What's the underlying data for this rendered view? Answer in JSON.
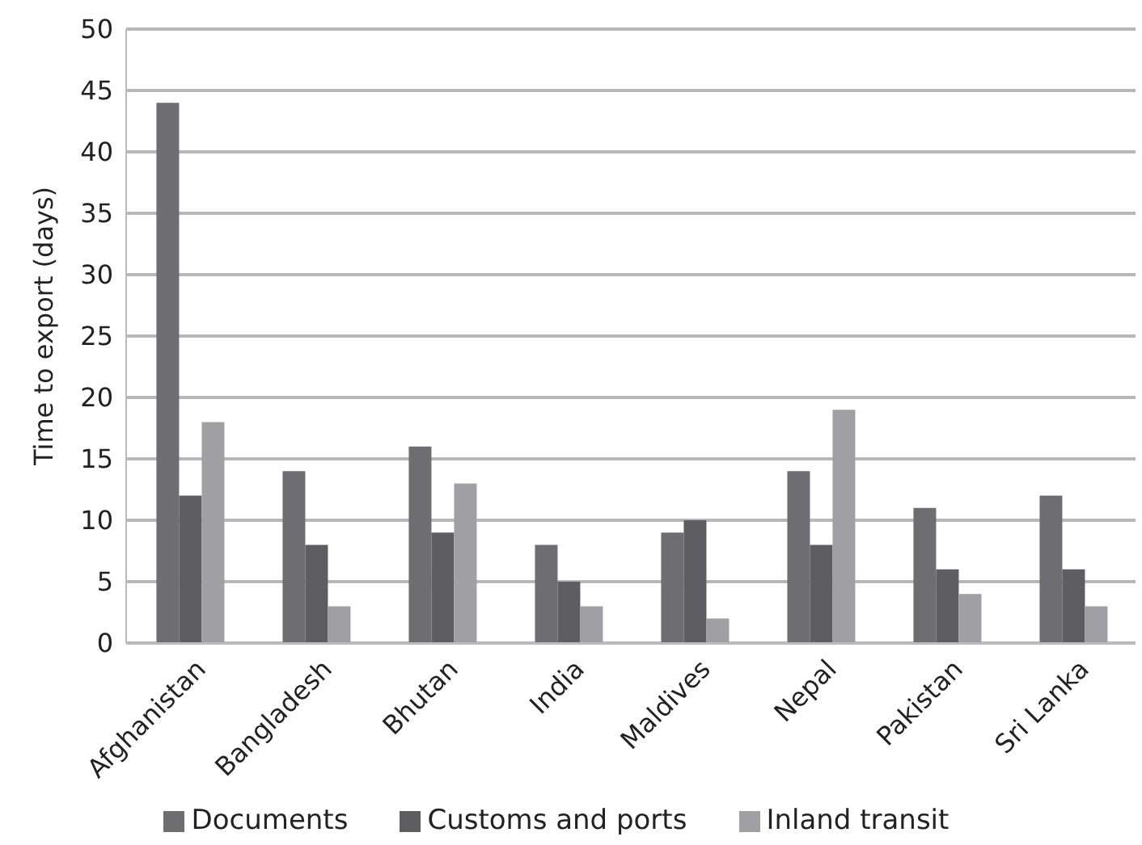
{
  "chart_data": {
    "type": "bar",
    "ylabel": "Time to export (days)",
    "categories": [
      "Afghanistan",
      "Bangladesh",
      "Bhutan",
      "India",
      "Maldives",
      "Nepal",
      "Pakistan",
      "Sri Lanka"
    ],
    "series": [
      {
        "name": "Documents",
        "color": "#6e6e72",
        "values": [
          44,
          14,
          16,
          8,
          9,
          14,
          11,
          12
        ]
      },
      {
        "name": "Customs and ports",
        "color": "#5e5e62",
        "values": [
          12,
          8,
          9,
          5,
          10,
          8,
          6,
          6
        ]
      },
      {
        "name": "Inland transit",
        "color": "#a0a0a4",
        "values": [
          18,
          3,
          13,
          3,
          2,
          19,
          4,
          3
        ]
      }
    ],
    "ylim": [
      0,
      50
    ],
    "yticks": [
      0,
      5,
      10,
      15,
      20,
      25,
      30,
      35,
      40,
      45,
      50
    ],
    "grid": "y",
    "legend": "bottom"
  }
}
